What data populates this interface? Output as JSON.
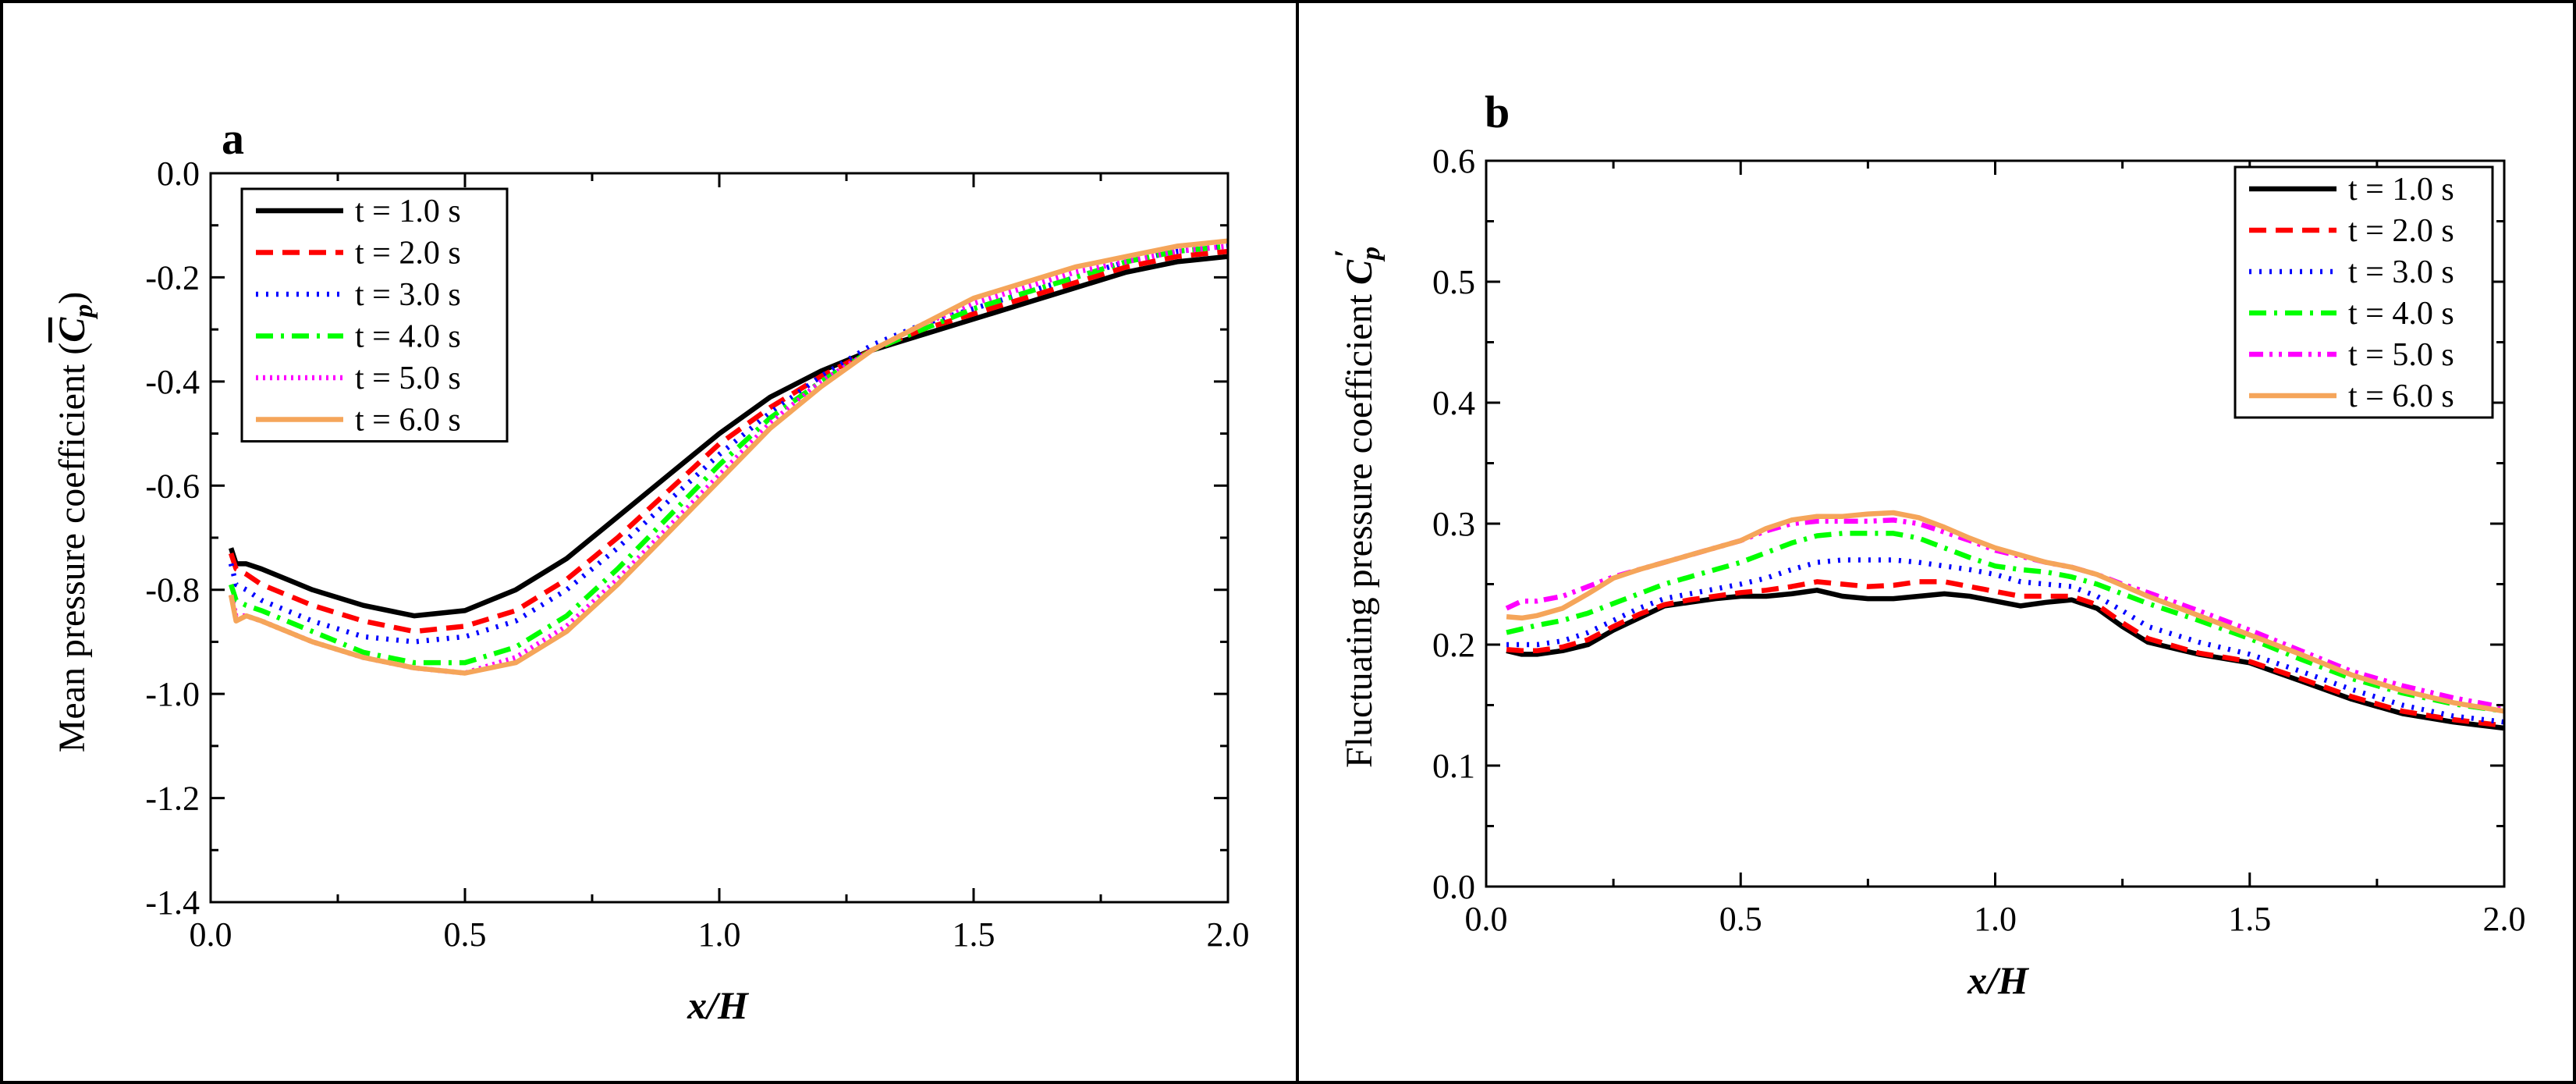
{
  "chart_data": [
    {
      "type": "line",
      "panel_label": "a",
      "title": "",
      "xlabel": "x/H",
      "ylabel_prefix": "Mean pressure coefficient (",
      "ylabel_symbol": "C",
      "ylabel_subscript": "p",
      "ylabel_suffix": ")",
      "xlim": [
        0.0,
        2.0
      ],
      "ylim": [
        -1.4,
        0.0
      ],
      "xticks": [
        0.0,
        0.5,
        1.0,
        1.5,
        2.0
      ],
      "xtick_labels": [
        "0.0",
        "0.5",
        "1.0",
        "1.5",
        "2.0"
      ],
      "yticks": [
        -1.4,
        -1.2,
        -1.0,
        -0.8,
        -0.6,
        -0.4,
        -0.2,
        0.0
      ],
      "ytick_labels": [
        "-1.4",
        "-1.2",
        "-1.0",
        "-0.8",
        "-0.6",
        "-0.4",
        "-0.2",
        "0.0"
      ],
      "legend_position": "top-left",
      "series": [
        {
          "name": "t = 1.0 s",
          "color": "#000000",
          "dash": "solid",
          "x": [
            0.04,
            0.05,
            0.07,
            0.1,
            0.2,
            0.3,
            0.4,
            0.5,
            0.6,
            0.7,
            0.8,
            0.9,
            1.0,
            1.1,
            1.2,
            1.3,
            1.4,
            1.5,
            1.6,
            1.7,
            1.8,
            1.9,
            2.0
          ],
          "y": [
            -0.72,
            -0.75,
            -0.75,
            -0.76,
            -0.8,
            -0.83,
            -0.85,
            -0.84,
            -0.8,
            -0.74,
            -0.66,
            -0.58,
            -0.5,
            -0.43,
            -0.38,
            -0.34,
            -0.31,
            -0.28,
            -0.25,
            -0.22,
            -0.19,
            -0.17,
            -0.16
          ]
        },
        {
          "name": "t = 2.0 s",
          "color": "#ff0000",
          "dash": "dashed",
          "x": [
            0.04,
            0.05,
            0.07,
            0.1,
            0.2,
            0.3,
            0.4,
            0.5,
            0.6,
            0.7,
            0.8,
            0.9,
            1.0,
            1.1,
            1.2,
            1.3,
            1.4,
            1.5,
            1.6,
            1.7,
            1.8,
            1.9,
            2.0
          ],
          "y": [
            -0.73,
            -0.76,
            -0.77,
            -0.79,
            -0.83,
            -0.86,
            -0.88,
            -0.87,
            -0.84,
            -0.78,
            -0.7,
            -0.61,
            -0.52,
            -0.45,
            -0.39,
            -0.34,
            -0.3,
            -0.27,
            -0.24,
            -0.21,
            -0.18,
            -0.16,
            -0.15
          ]
        },
        {
          "name": "t = 3.0 s",
          "color": "#0000ff",
          "dash": "dotted",
          "x": [
            0.04,
            0.05,
            0.07,
            0.1,
            0.2,
            0.3,
            0.4,
            0.5,
            0.6,
            0.7,
            0.8,
            0.9,
            1.0,
            1.1,
            1.2,
            1.3,
            1.4,
            1.5,
            1.6,
            1.7,
            1.8,
            1.9,
            2.0
          ],
          "y": [
            -0.75,
            -0.79,
            -0.8,
            -0.82,
            -0.86,
            -0.89,
            -0.9,
            -0.89,
            -0.86,
            -0.8,
            -0.72,
            -0.63,
            -0.54,
            -0.46,
            -0.39,
            -0.33,
            -0.29,
            -0.26,
            -0.23,
            -0.2,
            -0.17,
            -0.15,
            -0.14
          ]
        },
        {
          "name": "t = 4.0 s",
          "color": "#00ff00",
          "dash": "dashdot",
          "x": [
            0.04,
            0.05,
            0.07,
            0.1,
            0.2,
            0.3,
            0.4,
            0.5,
            0.6,
            0.7,
            0.8,
            0.9,
            1.0,
            1.1,
            1.2,
            1.3,
            1.4,
            1.5,
            1.6,
            1.7,
            1.8,
            1.9,
            2.0
          ],
          "y": [
            -0.79,
            -0.82,
            -0.83,
            -0.84,
            -0.88,
            -0.92,
            -0.94,
            -0.94,
            -0.91,
            -0.85,
            -0.76,
            -0.66,
            -0.56,
            -0.47,
            -0.4,
            -0.34,
            -0.3,
            -0.26,
            -0.23,
            -0.2,
            -0.17,
            -0.15,
            -0.14
          ]
        },
        {
          "name": "t = 5.0 s",
          "color": "#ff00ff",
          "dash": "densedot",
          "x": [
            0.04,
            0.05,
            0.07,
            0.1,
            0.2,
            0.3,
            0.4,
            0.5,
            0.6,
            0.7,
            0.8,
            0.9,
            1.0,
            1.1,
            1.2,
            1.3,
            1.4,
            1.5,
            1.6,
            1.7,
            1.8,
            1.9,
            2.0
          ],
          "y": [
            -0.81,
            -0.85,
            -0.85,
            -0.86,
            -0.9,
            -0.93,
            -0.95,
            -0.96,
            -0.93,
            -0.87,
            -0.78,
            -0.68,
            -0.58,
            -0.48,
            -0.4,
            -0.34,
            -0.29,
            -0.25,
            -0.22,
            -0.19,
            -0.17,
            -0.15,
            -0.14
          ]
        },
        {
          "name": "t = 6.0 s",
          "color": "#f5a55a",
          "dash": "solid",
          "x": [
            0.04,
            0.05,
            0.07,
            0.1,
            0.2,
            0.3,
            0.4,
            0.5,
            0.6,
            0.7,
            0.8,
            0.9,
            1.0,
            1.1,
            1.2,
            1.3,
            1.4,
            1.5,
            1.6,
            1.7,
            1.8,
            1.9,
            2.0
          ],
          "y": [
            -0.81,
            -0.86,
            -0.85,
            -0.86,
            -0.9,
            -0.93,
            -0.95,
            -0.96,
            -0.94,
            -0.88,
            -0.79,
            -0.69,
            -0.59,
            -0.49,
            -0.41,
            -0.34,
            -0.29,
            -0.24,
            -0.21,
            -0.18,
            -0.16,
            -0.14,
            -0.13
          ]
        }
      ]
    },
    {
      "type": "line",
      "panel_label": "b",
      "title": "",
      "xlabel": "x/H",
      "ylabel_prefix": "Fluctuating pressure coefficient ",
      "ylabel_symbol": "C",
      "ylabel_subscript": "p",
      "ylabel_prime": "′",
      "xlim": [
        0.0,
        2.0
      ],
      "ylim": [
        0.0,
        0.6
      ],
      "xticks": [
        0.0,
        0.5,
        1.0,
        1.5,
        2.0
      ],
      "xtick_labels": [
        "0.0",
        "0.5",
        "1.0",
        "1.5",
        "2.0"
      ],
      "yticks": [
        0.0,
        0.1,
        0.2,
        0.3,
        0.4,
        0.5,
        0.6
      ],
      "ytick_labels": [
        "0.0",
        "0.1",
        "0.2",
        "0.3",
        "0.4",
        "0.5",
        "0.6"
      ],
      "legend_position": "top-right",
      "series": [
        {
          "name": "t = 1.0 s",
          "color": "#000000",
          "dash": "solid",
          "x": [
            0.04,
            0.07,
            0.1,
            0.15,
            0.2,
            0.25,
            0.3,
            0.35,
            0.4,
            0.45,
            0.5,
            0.55,
            0.6,
            0.65,
            0.7,
            0.75,
            0.8,
            0.85,
            0.9,
            0.95,
            1.0,
            1.05,
            1.1,
            1.15,
            1.2,
            1.25,
            1.3,
            1.4,
            1.5,
            1.6,
            1.7,
            1.8,
            1.9,
            2.0
          ],
          "y": [
            0.195,
            0.192,
            0.192,
            0.195,
            0.2,
            0.212,
            0.222,
            0.232,
            0.235,
            0.238,
            0.24,
            0.24,
            0.242,
            0.245,
            0.24,
            0.238,
            0.238,
            0.24,
            0.242,
            0.24,
            0.236,
            0.232,
            0.235,
            0.237,
            0.23,
            0.215,
            0.202,
            0.192,
            0.185,
            0.17,
            0.155,
            0.143,
            0.136,
            0.131
          ]
        },
        {
          "name": "t = 2.0 s",
          "color": "#ff0000",
          "dash": "dashed",
          "x": [
            0.04,
            0.07,
            0.1,
            0.15,
            0.2,
            0.25,
            0.3,
            0.35,
            0.4,
            0.45,
            0.5,
            0.55,
            0.6,
            0.65,
            0.7,
            0.75,
            0.8,
            0.85,
            0.9,
            0.95,
            1.0,
            1.05,
            1.1,
            1.15,
            1.2,
            1.25,
            1.3,
            1.4,
            1.5,
            1.6,
            1.7,
            1.8,
            1.9,
            2.0
          ],
          "y": [
            0.196,
            0.195,
            0.195,
            0.198,
            0.204,
            0.215,
            0.225,
            0.233,
            0.237,
            0.24,
            0.243,
            0.245,
            0.248,
            0.252,
            0.25,
            0.248,
            0.249,
            0.252,
            0.252,
            0.248,
            0.244,
            0.24,
            0.24,
            0.24,
            0.233,
            0.218,
            0.205,
            0.193,
            0.186,
            0.172,
            0.157,
            0.145,
            0.138,
            0.133
          ]
        },
        {
          "name": "t = 3.0 s",
          "color": "#0000ff",
          "dash": "dotted",
          "x": [
            0.04,
            0.07,
            0.1,
            0.15,
            0.2,
            0.25,
            0.3,
            0.35,
            0.4,
            0.45,
            0.5,
            0.55,
            0.6,
            0.65,
            0.7,
            0.75,
            0.8,
            0.85,
            0.9,
            0.95,
            1.0,
            1.05,
            1.1,
            1.15,
            1.2,
            1.25,
            1.3,
            1.4,
            1.5,
            1.6,
            1.7,
            1.8,
            1.9,
            2.0
          ],
          "y": [
            0.2,
            0.2,
            0.2,
            0.203,
            0.21,
            0.22,
            0.23,
            0.238,
            0.242,
            0.246,
            0.25,
            0.255,
            0.262,
            0.268,
            0.27,
            0.27,
            0.27,
            0.268,
            0.265,
            0.262,
            0.258,
            0.252,
            0.25,
            0.248,
            0.24,
            0.228,
            0.215,
            0.202,
            0.192,
            0.178,
            0.163,
            0.15,
            0.141,
            0.136
          ]
        },
        {
          "name": "t = 4.0 s",
          "color": "#00ff00",
          "dash": "dashdot",
          "x": [
            0.04,
            0.07,
            0.1,
            0.15,
            0.2,
            0.25,
            0.3,
            0.35,
            0.4,
            0.45,
            0.5,
            0.55,
            0.6,
            0.65,
            0.7,
            0.75,
            0.8,
            0.85,
            0.9,
            0.95,
            1.0,
            1.05,
            1.1,
            1.15,
            1.2,
            1.25,
            1.3,
            1.4,
            1.5,
            1.6,
            1.7,
            1.8,
            1.9,
            2.0
          ],
          "y": [
            0.21,
            0.213,
            0.216,
            0.22,
            0.226,
            0.234,
            0.242,
            0.25,
            0.256,
            0.262,
            0.268,
            0.276,
            0.284,
            0.29,
            0.292,
            0.292,
            0.292,
            0.288,
            0.28,
            0.272,
            0.265,
            0.262,
            0.26,
            0.256,
            0.25,
            0.242,
            0.234,
            0.22,
            0.205,
            0.188,
            0.172,
            0.16,
            0.151,
            0.145
          ]
        },
        {
          "name": "t = 5.0 s",
          "color": "#ff00ff",
          "dash": "dashdotdot",
          "x": [
            0.04,
            0.07,
            0.1,
            0.15,
            0.2,
            0.25,
            0.3,
            0.35,
            0.4,
            0.45,
            0.5,
            0.55,
            0.6,
            0.65,
            0.7,
            0.75,
            0.8,
            0.85,
            0.9,
            0.95,
            1.0,
            1.05,
            1.1,
            1.15,
            1.2,
            1.25,
            1.3,
            1.4,
            1.5,
            1.6,
            1.7,
            1.8,
            1.9,
            2.0
          ],
          "y": [
            0.23,
            0.236,
            0.236,
            0.24,
            0.248,
            0.256,
            0.262,
            0.268,
            0.274,
            0.28,
            0.286,
            0.294,
            0.3,
            0.302,
            0.302,
            0.302,
            0.303,
            0.3,
            0.293,
            0.286,
            0.278,
            0.273,
            0.268,
            0.264,
            0.258,
            0.25,
            0.243,
            0.228,
            0.212,
            0.195,
            0.178,
            0.166,
            0.156,
            0.148
          ]
        },
        {
          "name": "t = 6.0 s",
          "color": "#f5a55a",
          "dash": "solid",
          "x": [
            0.04,
            0.07,
            0.1,
            0.15,
            0.2,
            0.25,
            0.3,
            0.35,
            0.4,
            0.45,
            0.5,
            0.55,
            0.6,
            0.65,
            0.7,
            0.75,
            0.8,
            0.85,
            0.9,
            0.95,
            1.0,
            1.05,
            1.1,
            1.15,
            1.2,
            1.25,
            1.3,
            1.4,
            1.5,
            1.6,
            1.7,
            1.8,
            1.9,
            2.0
          ],
          "y": [
            0.223,
            0.222,
            0.224,
            0.23,
            0.242,
            0.255,
            0.262,
            0.268,
            0.274,
            0.28,
            0.286,
            0.296,
            0.303,
            0.306,
            0.306,
            0.308,
            0.309,
            0.305,
            0.297,
            0.288,
            0.28,
            0.274,
            0.268,
            0.264,
            0.258,
            0.249,
            0.24,
            0.224,
            0.208,
            0.192,
            0.175,
            0.162,
            0.152,
            0.145
          ]
        }
      ]
    }
  ]
}
